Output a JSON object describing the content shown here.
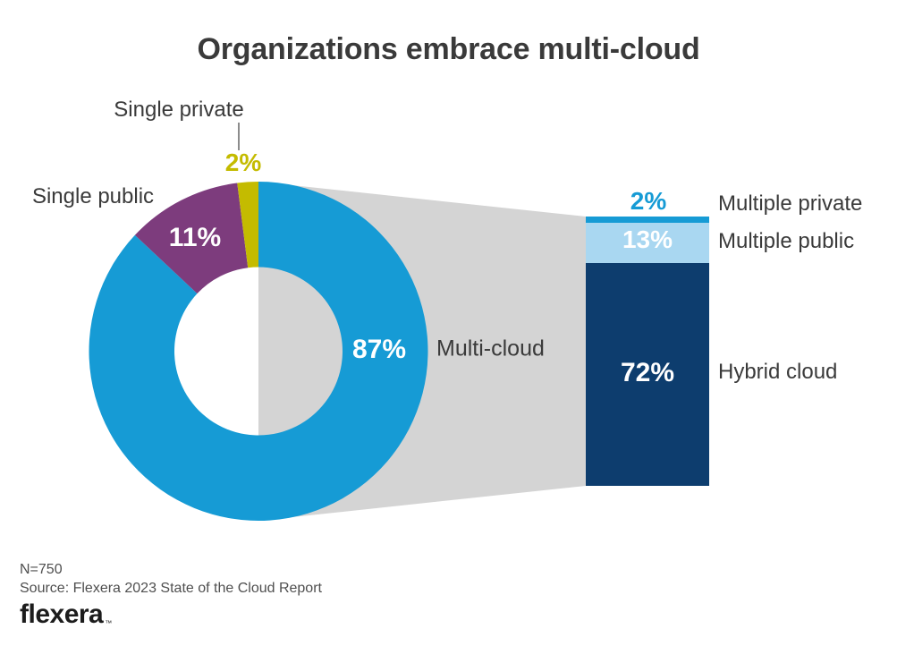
{
  "title": "Organizations embrace multi-cloud",
  "chart_data": {
    "type": "pie",
    "subtype": "donut-with-stacked-bar-breakdown",
    "title": "Organizations embrace multi-cloud",
    "donut": {
      "segments": [
        {
          "label": "Multi-cloud",
          "value": 87,
          "display": "87%",
          "color": "#169bd5"
        },
        {
          "label": "Single public",
          "value": 11,
          "display": "11%",
          "color": "#7d3c7d"
        },
        {
          "label": "Single private",
          "value": 2,
          "display": "2%",
          "color": "#c4bb00"
        }
      ]
    },
    "breakdown_bar": {
      "parent_segment": "Multi-cloud",
      "segments": [
        {
          "label": "Multiple private",
          "value": 2,
          "display": "2%",
          "color": "#169bd5"
        },
        {
          "label": "Multiple public",
          "value": 13,
          "display": "13%",
          "color": "#a9d7f1"
        },
        {
          "label": "Hybrid cloud",
          "value": 72,
          "display": "72%",
          "color": "#0d3d6e"
        }
      ]
    },
    "funnel_color": "#d4d4d4",
    "label_color": "#3a3a3a",
    "legend_position": "labels-adjacent",
    "sample_size": "N=750",
    "source": "Source: Flexera 2023 State of the Cloud Report"
  },
  "footer": {
    "sample_size": "N=750",
    "source": "Source: Flexera 2023 State of the Cloud Report",
    "logo_text": "flexera",
    "logo_trademark": "™"
  }
}
